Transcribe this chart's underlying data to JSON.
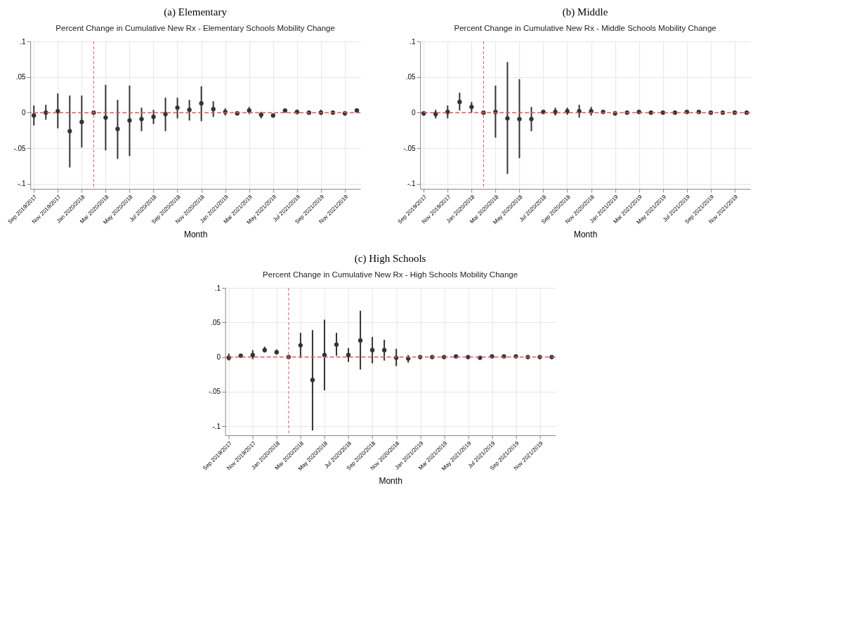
{
  "chart_data": [
    {
      "type": "scatter",
      "title": "(a) Elementary",
      "subtitle": "Percent Change in Cumulative New Rx - Elementary Schools Mobility Change",
      "xlabel": "Month",
      "categories": [
        "Sep 2019/2017",
        null,
        "Nov 2019/2017",
        null,
        "Jan 2020/2018",
        null,
        "Mar 2020/2018",
        null,
        "May 2020/2018",
        null,
        "Jul 2020/2018",
        null,
        "Sep 2020/2018",
        null,
        "Nov 2020/2018",
        null,
        "Jan 2021/2019",
        null,
        "Mar 2021/2019",
        null,
        "May 2021/2019",
        null,
        "Jul 2021/2019",
        null,
        "Sep 2021/2019",
        null,
        "Nov 2021/2019",
        null
      ],
      "ylim": [
        -0.107,
        0.1
      ],
      "yticks": [
        {
          "value": 0.1,
          "label": ".1"
        },
        {
          "value": 0.05,
          "label": ".05"
        },
        {
          "value": 0,
          "label": "0"
        },
        {
          "value": -0.05,
          "label": "-.05"
        },
        {
          "value": -0.1,
          "label": "-.1"
        }
      ],
      "grid": true,
      "marker": "circle",
      "color": "#333333",
      "values": [
        -0.004,
        0,
        0.002,
        -0.026,
        -0.013,
        0,
        -0.007,
        -0.023,
        -0.011,
        -0.009,
        -0.006,
        -0.002,
        0.007,
        0.004,
        0.013,
        0.005,
        0.001,
        -0.001,
        0.003,
        -0.003,
        -0.004,
        0.003,
        0.001,
        0,
        0,
        0,
        -0.001,
        0.003
      ],
      "errors": [
        [
          -0.018,
          0.01
        ],
        [
          -0.01,
          0.011
        ],
        [
          -0.022,
          0.027
        ],
        [
          -0.077,
          0.024
        ],
        [
          -0.049,
          0.024
        ],
        null,
        [
          -0.053,
          0.039
        ],
        [
          -0.065,
          0.018
        ],
        [
          -0.061,
          0.038
        ],
        [
          -0.026,
          0.007
        ],
        [
          -0.016,
          0.004
        ],
        [
          -0.026,
          0.021
        ],
        [
          -0.008,
          0.021
        ],
        [
          -0.011,
          0.018
        ],
        [
          -0.012,
          0.037
        ],
        [
          -0.006,
          0.016
        ],
        [
          -0.004,
          0.006
        ],
        null,
        [
          -0.002,
          0.008
        ],
        [
          -0.008,
          0.001
        ],
        [
          -0.006,
          -0.002
        ],
        null,
        [
          -0.002,
          0.004
        ],
        null,
        [
          -0.003,
          0.004
        ],
        null,
        null,
        [
          0,
          0.006
        ]
      ],
      "ref_lines": [
        {
          "axis": "y",
          "value": 0,
          "color": "#e0555a",
          "line_style": "dashed"
        }
      ]
    },
    {
      "type": "scatter",
      "title": "(b) Middle",
      "subtitle": "Percent Change in Cumulative New Rx - Middle Schools Mobility Change",
      "xlabel": "Month",
      "categories": [
        "Sep 2019/2017",
        null,
        "Nov 2019/2017",
        null,
        "Jan 2020/2018",
        null,
        "Mar 2020/2018",
        null,
        "May 2020/2018",
        null,
        "Jul 2020/2018",
        null,
        "Sep 2020/2018",
        null,
        "Nov 2020/2018",
        null,
        "Jan 2021/2019",
        null,
        "Mar 2021/2019",
        null,
        "May 2021/2019",
        null,
        "Jul 2021/2019",
        null,
        "Sep 2021/2019",
        null,
        "Nov 2021/2019",
        null
      ],
      "ylim": [
        -0.107,
        0.1
      ],
      "yticks": [
        {
          "value": 0.1,
          "label": ".1"
        },
        {
          "value": 0.05,
          "label": ".05"
        },
        {
          "value": 0,
          "label": "0"
        },
        {
          "value": -0.05,
          "label": "-.05"
        },
        {
          "value": -0.1,
          "label": "-.1"
        }
      ],
      "grid": true,
      "marker": "circle",
      "color": "#333333",
      "values": [
        -0.001,
        -0.002,
        0.001,
        0.015,
        0.008,
        0,
        0.001,
        -0.008,
        -0.009,
        -0.009,
        0.001,
        0.001,
        0.002,
        0.002,
        0.002,
        0.001,
        -0.001,
        0,
        0.001,
        0,
        0,
        0,
        0.001,
        0.001,
        0,
        0,
        0,
        0
      ],
      "errors": [
        [
          -0.004,
          0.001
        ],
        [
          -0.008,
          0.004
        ],
        [
          -0.008,
          0.01
        ],
        [
          0.003,
          0.028
        ],
        [
          0,
          0.015
        ],
        null,
        [
          -0.035,
          0.038
        ],
        [
          -0.086,
          0.071
        ],
        [
          -0.064,
          0.047
        ],
        [
          -0.026,
          0.008
        ],
        null,
        [
          -0.004,
          0.007
        ],
        [
          -0.003,
          0.007
        ],
        [
          -0.007,
          0.011
        ],
        [
          -0.004,
          0.008
        ],
        null,
        null,
        null,
        null,
        null,
        null,
        null,
        null,
        null,
        null,
        null,
        null,
        null
      ],
      "ref_lines": [
        {
          "axis": "y",
          "value": 0,
          "color": "#e0555a",
          "line_style": "dashed"
        }
      ]
    },
    {
      "type": "scatter",
      "title": "(c) High Schools",
      "subtitle": "Percent Change in Cumulative New Rx - High Schools Mobility Change",
      "xlabel": "Month",
      "categories": [
        "Sep 2019/2017",
        null,
        "Nov 2019/2017",
        null,
        "Jan 2020/2018",
        null,
        "Mar 2020/2018",
        null,
        "May 2020/2018",
        null,
        "Jul 2020/2018",
        null,
        "Sep 2020/2018",
        null,
        "Nov 2020/2018",
        null,
        "Jan 2021/2019",
        null,
        "Mar 2021/2019",
        null,
        "May 2021/2019",
        null,
        "Jul 2021/2019",
        null,
        "Sep 2021/2019",
        null,
        "Nov 2021/2019",
        null
      ],
      "ylim": [
        -0.113,
        0.1
      ],
      "yticks": [
        {
          "value": 0.1,
          "label": ".1"
        },
        {
          "value": 0.05,
          "label": ".05"
        },
        {
          "value": 0,
          "label": "0"
        },
        {
          "value": -0.05,
          "label": "-.05"
        },
        {
          "value": -0.1,
          "label": "-.1"
        }
      ],
      "grid": true,
      "marker": "circle",
      "color": "#333333",
      "values": [
        -0.001,
        0.002,
        0.003,
        0.01,
        0.007,
        0,
        0.017,
        -0.033,
        0.003,
        0.018,
        0.003,
        0.024,
        0.01,
        0.01,
        -0.001,
        -0.002,
        0,
        0,
        0,
        0.001,
        0,
        -0.001,
        0.001,
        0.001,
        0.001,
        0,
        0,
        0
      ],
      "errors": [
        [
          -0.005,
          0.005
        ],
        null,
        [
          -0.003,
          0.01
        ],
        [
          0.007,
          0.015
        ],
        [
          0.004,
          0.011
        ],
        null,
        [
          -0.001,
          0.035
        ],
        [
          -0.106,
          0.039
        ],
        [
          -0.048,
          0.054
        ],
        [
          0.002,
          0.035
        ],
        [
          -0.007,
          0.013
        ],
        [
          -0.018,
          0.067
        ],
        [
          -0.009,
          0.029
        ],
        [
          -0.005,
          0.025
        ],
        [
          -0.013,
          0.012
        ],
        [
          -0.008,
          0.003
        ],
        null,
        null,
        null,
        null,
        null,
        null,
        null,
        null,
        null,
        null,
        null,
        null
      ],
      "ref_lines": [
        {
          "axis": "y",
          "value": 0,
          "color": "#e0555a",
          "line_style": "dashed"
        }
      ]
    }
  ]
}
